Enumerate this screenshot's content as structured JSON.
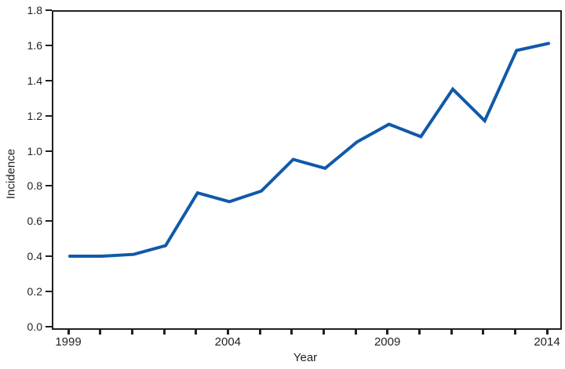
{
  "chart_data": {
    "type": "line",
    "title": "",
    "xlabel": "Year",
    "ylabel": "Incidence",
    "x": [
      1999,
      2000,
      2001,
      2002,
      2003,
      2004,
      2005,
      2006,
      2007,
      2008,
      2009,
      2010,
      2011,
      2012,
      2013,
      2014
    ],
    "series": [
      {
        "name": "Incidence",
        "values": [
          0.41,
          0.41,
          0.42,
          0.47,
          0.77,
          0.72,
          0.78,
          0.96,
          0.91,
          1.06,
          1.16,
          1.09,
          1.36,
          1.18,
          1.58,
          1.62
        ]
      }
    ],
    "ylim": [
      0.0,
      1.8
    ],
    "ytick_labels": [
      "0.0",
      "0.2",
      "0.4",
      "0.6",
      "0.8",
      "1.0",
      "1.2",
      "1.4",
      "1.6",
      "1.8"
    ],
    "xtick_years": [
      1999,
      2000,
      2001,
      2002,
      2003,
      2004,
      2005,
      2006,
      2007,
      2008,
      2009,
      2010,
      2011,
      2012,
      2013,
      2014
    ],
    "xtick_labels_shown": [
      "1999",
      "2004",
      "2009",
      "2014"
    ],
    "grid": "off",
    "legend": "none",
    "line_color": "#1159a8",
    "axis_color": "#231f20",
    "background_color": "#ffffff"
  }
}
